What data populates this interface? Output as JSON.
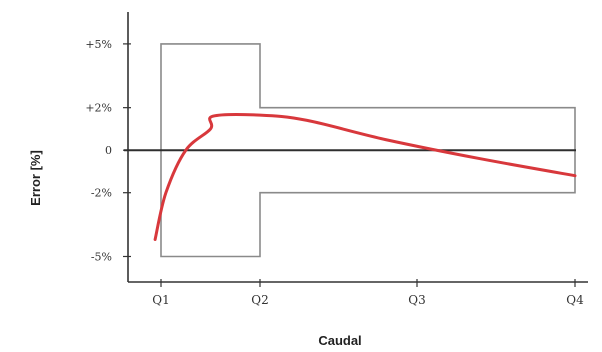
{
  "colors": {
    "curve": "#d8383c",
    "axes": "#333333",
    "zero_line": "#2e2e2e",
    "envelope": "#8a8a8a"
  },
  "chart_data": {
    "type": "line",
    "title": "",
    "xlabel": "Caudal",
    "ylabel": "Error [%]",
    "y_tick_labels": [
      {
        "value": 5,
        "label": "+5%"
      },
      {
        "value": 2,
        "label": "+2%"
      },
      {
        "value": 0,
        "label": "0"
      },
      {
        "value": -2,
        "label": "-2%"
      },
      {
        "value": -5,
        "label": "-5%"
      }
    ],
    "x_categories": [
      "Q1",
      "Q2",
      "Q3",
      "Q4"
    ],
    "ylim": [
      -6.2,
      6.5
    ],
    "grid": false,
    "error_limit_envelope": {
      "upper": [
        {
          "x": "Q1",
          "y": 5
        },
        {
          "x": "Q2",
          "y": 5
        },
        {
          "x": "Q2",
          "y": 2
        },
        {
          "x": "Q4",
          "y": 2
        }
      ],
      "lower": [
        {
          "x": "Q1",
          "y": -5
        },
        {
          "x": "Q2",
          "y": -5
        },
        {
          "x": "Q2",
          "y": -2
        },
        {
          "x": "Q4",
          "y": -2
        }
      ]
    },
    "series": [
      {
        "points": [
          {
            "x": "Q1",
            "y": -4.2,
            "offset": -0.06
          },
          {
            "x": "Q1",
            "y": -2.0,
            "offset": 0.05
          },
          {
            "x": "Q1",
            "y": 0.0,
            "offset": 0.25
          },
          {
            "x": "Q1",
            "y": 1.0,
            "offset": 0.5
          },
          {
            "x": "Q2",
            "y": 1.6,
            "offset": -0.3
          },
          {
            "x": "Q2",
            "y": 1.65,
            "offset": 0.0
          },
          {
            "x": "Q2",
            "y": 1.4,
            "offset": 0.3
          },
          {
            "x": "Q2",
            "y": 0.5,
            "offset": 0.8
          },
          {
            "x": "Q3",
            "y": -0.4,
            "offset": 0.4
          },
          {
            "x": "Q4",
            "y": -1.2,
            "offset": 0.0
          }
        ]
      }
    ]
  }
}
